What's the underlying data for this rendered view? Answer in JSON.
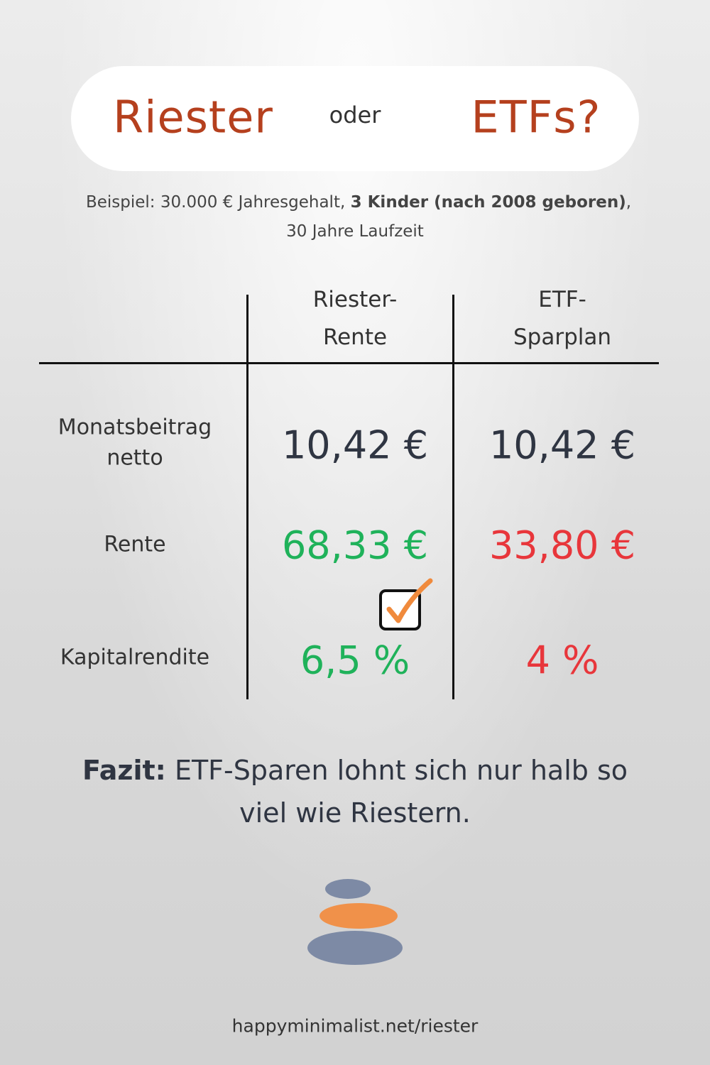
{
  "header": {
    "left": "Riester",
    "middle": "oder",
    "right": "ETFs?"
  },
  "subtitle": {
    "part1": "Beispiel: 30.000 € Jahresgehalt, ",
    "bold": "3 Kinder (nach 2008 geboren)",
    "part2": ",",
    "line2": "30 Jahre Laufzeit"
  },
  "table": {
    "columns": [
      [
        "Riester-",
        "Rente"
      ],
      [
        "ETF-",
        "Sparplan"
      ]
    ],
    "rows": [
      {
        "label": [
          "Monatsbeitrag",
          "netto"
        ],
        "values": [
          "10,42 €",
          "10,42 €"
        ]
      },
      {
        "label": [
          "Rente"
        ],
        "values": [
          "68,33 €",
          "33,80 €"
        ]
      },
      {
        "label": [
          "Kapitalrendite"
        ],
        "values": [
          "6,5 %",
          "4 %"
        ]
      }
    ]
  },
  "conclusion": {
    "label": "Fazit:",
    "text": "ETF-Sparen lohnt sich nur halb so viel wie Riestern."
  },
  "footer": {
    "url": "happyminimalist.net/riester"
  }
}
